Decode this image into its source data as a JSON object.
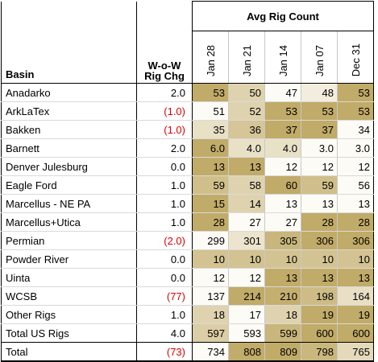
{
  "header": {
    "basin_label": "Basin",
    "wow_label_line1": "W-o-W",
    "wow_label_line2": "Rig Chg",
    "avg_title": "Avg Rig Count",
    "weeks": [
      "Jan 28",
      "Jan 21",
      "Jan 14",
      "Jan 07",
      "Dec 31"
    ]
  },
  "colors": {
    "heat_low": "#fdfbf5",
    "heat_high": "#c1ab68",
    "negative": "#e00000"
  },
  "rows": [
    {
      "basin": "Anadarko",
      "wow": "2.0",
      "neg": false,
      "values": [
        "53",
        "50",
        "47",
        "48",
        "53"
      ],
      "level": [
        1.0,
        0.5,
        0.0,
        0.17,
        1.0
      ]
    },
    {
      "basin": "ArkLaTex",
      "wow": "(1.0)",
      "neg": true,
      "values": [
        "51",
        "52",
        "53",
        "53",
        "53"
      ],
      "level": [
        0.0,
        0.5,
        1.0,
        1.0,
        1.0
      ]
    },
    {
      "basin": "Bakken",
      "wow": "(1.0)",
      "neg": true,
      "values": [
        "35",
        "36",
        "37",
        "37",
        "34"
      ],
      "level": [
        0.33,
        0.67,
        1.0,
        1.0,
        0.0
      ]
    },
    {
      "basin": "Barnett",
      "wow": "2.0",
      "neg": false,
      "values": [
        "6.0",
        "4.0",
        "4.0",
        "3.0",
        "3.0"
      ],
      "level": [
        1.0,
        0.33,
        0.33,
        0.0,
        0.0
      ]
    },
    {
      "basin": "Denver Julesburg",
      "wow": "0.0",
      "neg": false,
      "values": [
        "13",
        "13",
        "12",
        "12",
        "12"
      ],
      "level": [
        1.0,
        1.0,
        0.0,
        0.0,
        0.0
      ]
    },
    {
      "basin": "Eagle Ford",
      "wow": "1.0",
      "neg": false,
      "values": [
        "59",
        "58",
        "60",
        "59",
        "56"
      ],
      "level": [
        0.75,
        0.5,
        1.0,
        0.75,
        0.0
      ]
    },
    {
      "basin": "Marcellus - NE PA",
      "wow": "1.0",
      "neg": false,
      "values": [
        "15",
        "14",
        "13",
        "13",
        "13"
      ],
      "level": [
        1.0,
        0.5,
        0.0,
        0.0,
        0.0
      ]
    },
    {
      "basin": "Marcellus+Utica",
      "wow": "1.0",
      "neg": false,
      "values": [
        "28",
        "27",
        "27",
        "28",
        "28"
      ],
      "level": [
        1.0,
        0.0,
        0.0,
        1.0,
        1.0
      ]
    },
    {
      "basin": "Permian",
      "wow": "(2.0)",
      "neg": true,
      "values": [
        "299",
        "301",
        "305",
        "306",
        "306"
      ],
      "level": [
        0.0,
        0.29,
        0.86,
        1.0,
        1.0
      ]
    },
    {
      "basin": "Powder River",
      "wow": "0.0",
      "neg": false,
      "values": [
        "10",
        "10",
        "10",
        "10",
        "10"
      ],
      "level": [
        0.7,
        0.7,
        0.7,
        0.7,
        0.7
      ]
    },
    {
      "basin": "Uinta",
      "wow": "0.0",
      "neg": false,
      "values": [
        "12",
        "12",
        "13",
        "13",
        "13"
      ],
      "level": [
        0.0,
        0.0,
        1.0,
        1.0,
        1.0
      ]
    },
    {
      "basin": "WCSB",
      "wow": "(77)",
      "neg": true,
      "values": [
        "137",
        "214",
        "210",
        "198",
        "164"
      ],
      "level": [
        0.0,
        1.0,
        0.95,
        0.79,
        0.35
      ]
    },
    {
      "basin": "Other Rigs",
      "wow": "1.0",
      "neg": false,
      "values": [
        "18",
        "17",
        "18",
        "19",
        "19"
      ],
      "level": [
        0.5,
        0.0,
        0.5,
        1.0,
        1.0
      ]
    }
  ],
  "total_us": {
    "basin": "Total US Rigs",
    "wow": "4.0",
    "neg": false,
    "values": [
      "597",
      "593",
      "599",
      "600",
      "600"
    ],
    "level": [
      0.57,
      0.0,
      0.86,
      1.0,
      1.0
    ]
  },
  "total": {
    "basin": "Total",
    "wow": "(73)",
    "neg": true,
    "values": [
      "734",
      "808",
      "809",
      "798",
      "765"
    ],
    "level": [
      0.0,
      0.99,
      1.0,
      0.85,
      0.41
    ]
  }
}
